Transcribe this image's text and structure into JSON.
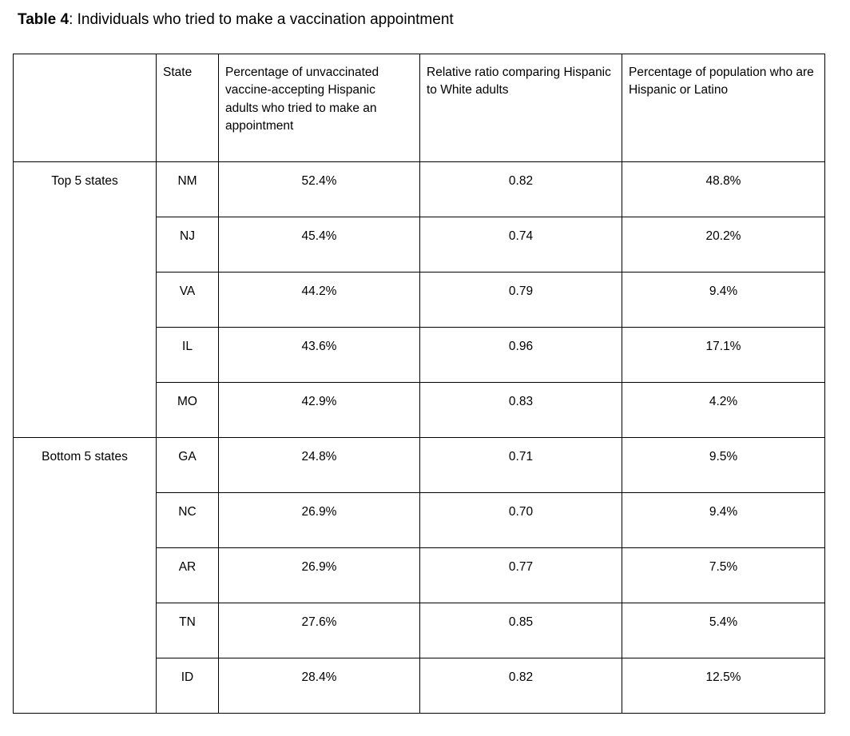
{
  "page": {
    "title_bold": "Table 4",
    "title_rest": ": Individuals who tried to make a vaccination appointment"
  },
  "table": {
    "headers": {
      "group": "",
      "state": "State",
      "pct_tried": "Percentage of unvaccinated vaccine-accepting Hispanic adults who tried to make an appointment",
      "relative_ratio": "Relative ratio comparing Hispanic to White adults",
      "pct_population": "Percentage of population who are Hispanic or Latino"
    },
    "groups": [
      {
        "label": "Top 5 states",
        "rows": [
          {
            "state": "NM",
            "pct_tried": "52.4%",
            "relative_ratio": "0.82",
            "pct_population": "48.8%"
          },
          {
            "state": "NJ",
            "pct_tried": "45.4%",
            "relative_ratio": "0.74",
            "pct_population": "20.2%"
          },
          {
            "state": "VA",
            "pct_tried": "44.2%",
            "relative_ratio": "0.79",
            "pct_population": "9.4%"
          },
          {
            "state": "IL",
            "pct_tried": "43.6%",
            "relative_ratio": "0.96",
            "pct_population": "17.1%"
          },
          {
            "state": "MO",
            "pct_tried": "42.9%",
            "relative_ratio": "0.83",
            "pct_population": "4.2%"
          }
        ]
      },
      {
        "label": "Bottom 5 states",
        "rows": [
          {
            "state": "GA",
            "pct_tried": "24.8%",
            "relative_ratio": "0.71",
            "pct_population": "9.5%"
          },
          {
            "state": "NC",
            "pct_tried": "26.9%",
            "relative_ratio": "0.70",
            "pct_population": "9.4%"
          },
          {
            "state": "AR",
            "pct_tried": "26.9%",
            "relative_ratio": "0.77",
            "pct_population": "7.5%"
          },
          {
            "state": "TN",
            "pct_tried": "27.6%",
            "relative_ratio": "0.85",
            "pct_population": "5.4%"
          },
          {
            "state": "ID",
            "pct_tried": "28.4%",
            "relative_ratio": "0.82",
            "pct_population": "12.5%"
          }
        ]
      }
    ]
  },
  "colors": {
    "background": "#ffffff",
    "border": "#000000",
    "text": "#000000"
  }
}
